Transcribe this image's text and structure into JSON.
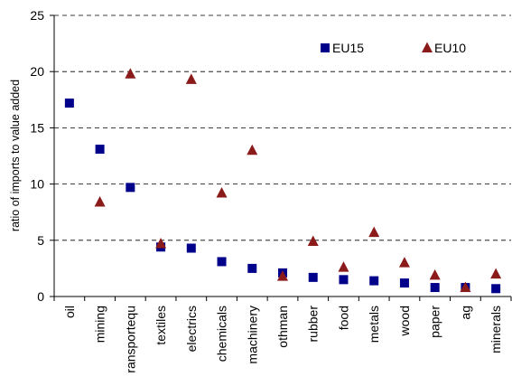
{
  "chart_data": {
    "type": "scatter",
    "ylabel": "ratio of imports to value added",
    "ylim": [
      0,
      25
    ],
    "yticks": [
      0,
      5,
      10,
      15,
      20,
      25
    ],
    "grid": true,
    "legend_position": "top-right",
    "categories": [
      "oil",
      "mining",
      "ransportequ",
      "textiles",
      "electrics",
      "chemicals",
      "machinery",
      "othman",
      "rubber",
      "food",
      "metals",
      "wood",
      "paper",
      "ag",
      "minerals"
    ],
    "series": [
      {
        "name": "EU15",
        "marker": "square",
        "color": "#00008B",
        "values": [
          17.2,
          13.1,
          9.7,
          4.4,
          4.3,
          3.1,
          2.5,
          2.1,
          1.7,
          1.5,
          1.4,
          1.2,
          0.8,
          0.8,
          0.7
        ]
      },
      {
        "name": "EU10",
        "marker": "triangle",
        "color": "#8B1A1A",
        "values": [
          null,
          8.4,
          19.8,
          4.7,
          19.3,
          9.2,
          13.0,
          1.8,
          4.9,
          2.6,
          5.7,
          3.0,
          1.9,
          0.8,
          2.0
        ]
      }
    ]
  }
}
